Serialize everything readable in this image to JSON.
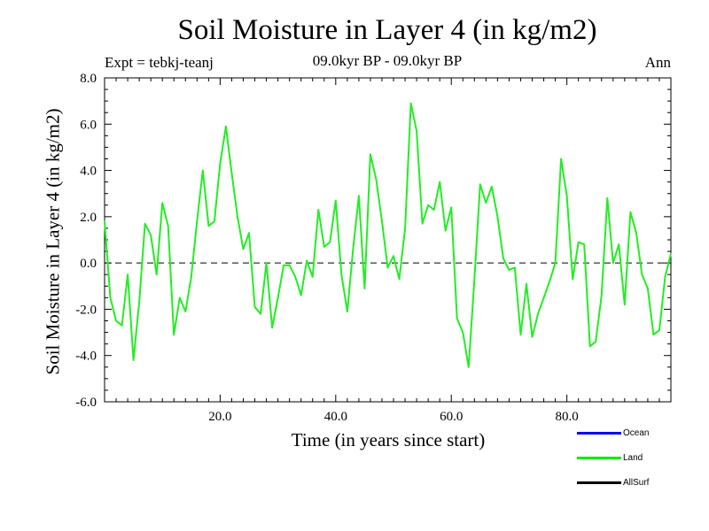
{
  "chart_data": {
    "type": "line",
    "title": "Soil Moisture in Layer 4 (in kg/m2)",
    "subtitle": "09.0kyr BP - 09.0kyr BP",
    "experiment": "Expt = tebkj-teanj",
    "season": "Ann",
    "xlabel": "Time (in years since start)",
    "ylabel": "Soil Moisture in Layer 4 (in kg/m2)",
    "xlim": [
      0,
      98
    ],
    "ylim": [
      -6.0,
      8.0
    ],
    "xticks": [
      20.0,
      40.0,
      60.0,
      80.0
    ],
    "xtick_labels": [
      "20.0",
      "40.0",
      "60.0",
      "80.0"
    ],
    "yticks": [
      -6.0,
      -4.0,
      -2.0,
      0.0,
      2.0,
      4.0,
      6.0,
      8.0
    ],
    "ytick_labels": [
      "-6.0",
      "-4.0",
      "-2.0",
      "0.0",
      "2.0",
      "4.0",
      "6.0",
      "8.0"
    ],
    "reference_line": 0.0,
    "legend": [
      {
        "name": "Ocean",
        "color": "#0000ff"
      },
      {
        "name": "Land",
        "color": "#00ee00"
      },
      {
        "name": "AllSurf",
        "color": "#000000"
      }
    ],
    "series": [
      {
        "name": "Land",
        "color": "#22ee22",
        "x": [
          0,
          1,
          2,
          3,
          4,
          5,
          6,
          7,
          8,
          9,
          10,
          11,
          12,
          13,
          14,
          15,
          16,
          17,
          18,
          19,
          20,
          21,
          22,
          23,
          24,
          25,
          26,
          27,
          28,
          29,
          30,
          31,
          32,
          33,
          34,
          35,
          36,
          37,
          38,
          39,
          40,
          41,
          42,
          43,
          44,
          45,
          46,
          47,
          48,
          49,
          50,
          51,
          52,
          53,
          54,
          55,
          56,
          57,
          58,
          59,
          60,
          61,
          62,
          63,
          64,
          65,
          66,
          67,
          68,
          69,
          70,
          71,
          72,
          73,
          74,
          75,
          76,
          77,
          78,
          79,
          80,
          81,
          82,
          83,
          84,
          85,
          86,
          87,
          88,
          89,
          90,
          91,
          92,
          93,
          94,
          95,
          96,
          97,
          98
        ],
        "values": [
          1.8,
          -1.5,
          -2.5,
          -2.7,
          -0.5,
          -4.2,
          -1.7,
          1.7,
          1.2,
          -0.5,
          2.6,
          1.6,
          -3.1,
          -1.5,
          -2.1,
          -0.6,
          1.8,
          4.0,
          1.6,
          1.8,
          4.3,
          5.9,
          3.9,
          2.0,
          0.6,
          1.3,
          -1.9,
          -2.2,
          0.0,
          -2.8,
          -1.5,
          -0.1,
          -0.1,
          -0.6,
          -1.4,
          0.1,
          -0.6,
          2.3,
          0.7,
          0.9,
          2.7,
          -0.5,
          -2.1,
          0.6,
          2.9,
          -1.1,
          4.7,
          3.6,
          1.8,
          -0.2,
          0.3,
          -0.7,
          1.5,
          6.9,
          5.7,
          1.7,
          2.5,
          2.3,
          3.5,
          1.4,
          2.4,
          -2.4,
          -3.0,
          -4.5,
          -0.7,
          3.4,
          2.6,
          3.3,
          2.0,
          0.2,
          -0.3,
          -0.2,
          -3.1,
          -0.9,
          -3.2,
          -2.2,
          -1.5,
          -0.8,
          0.0,
          4.5,
          2.9,
          -0.7,
          0.9,
          0.8,
          -3.6,
          -3.4,
          -1.4,
          2.8,
          0.0,
          0.8,
          -1.8,
          2.2,
          1.3,
          -0.5,
          -1.1,
          -3.1,
          -2.9,
          -0.6,
          0.4
        ]
      }
    ]
  }
}
